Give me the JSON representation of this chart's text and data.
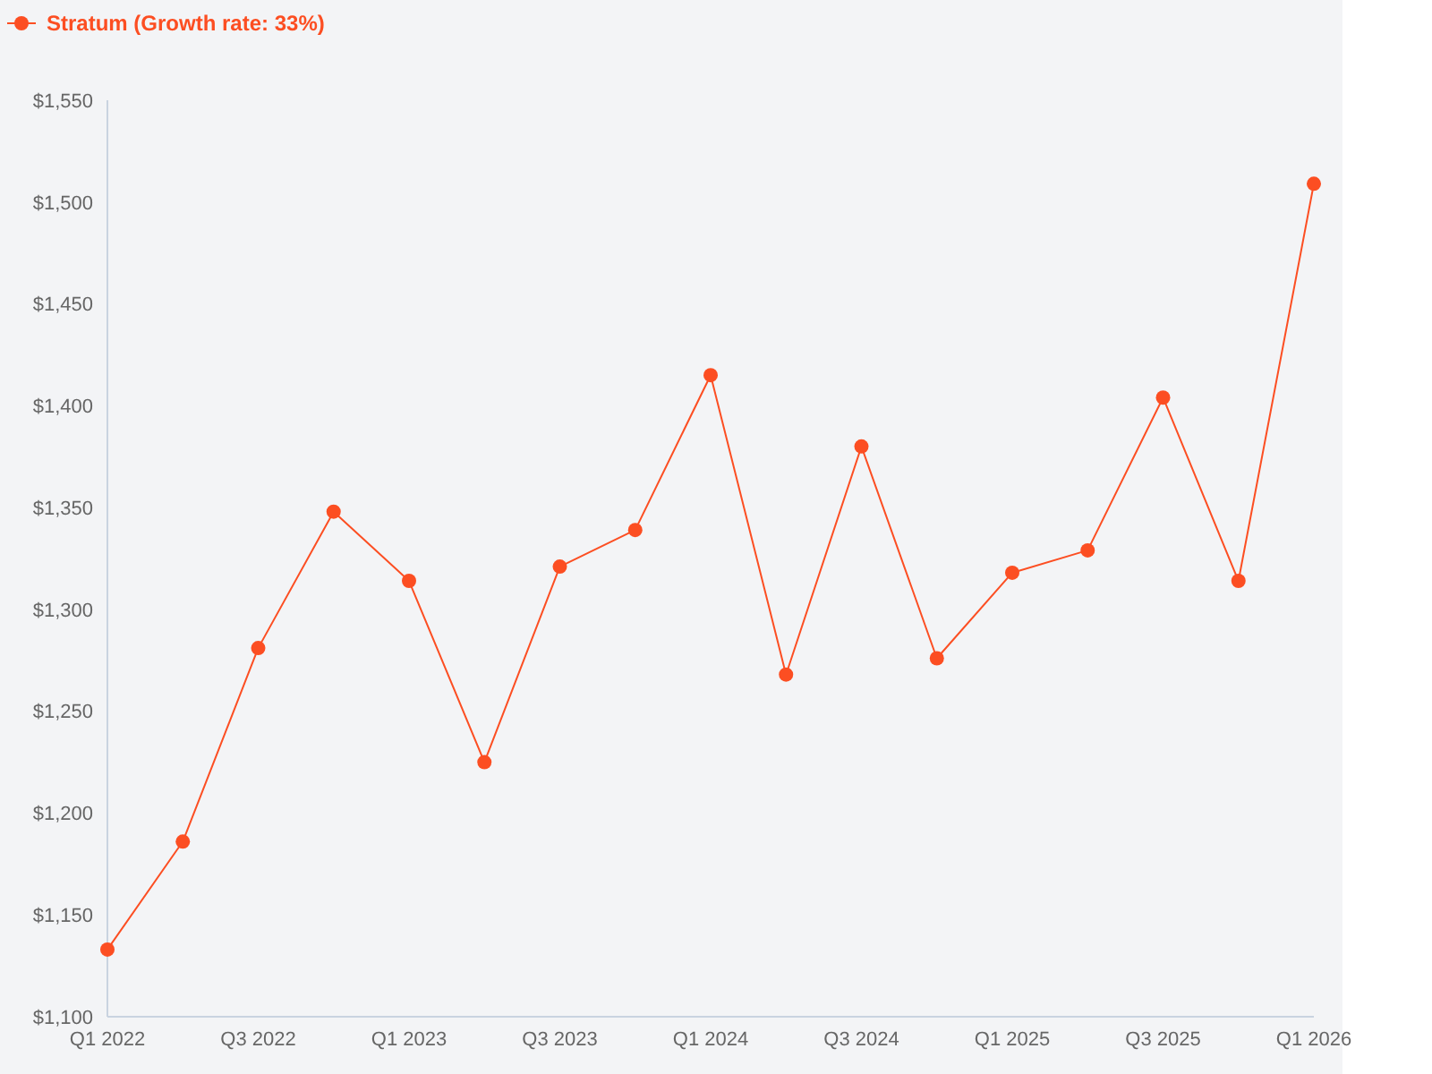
{
  "chart_data": {
    "type": "line",
    "categories": [
      "Q1 2022",
      null,
      "Q3 2022",
      null,
      "Q1 2023",
      null,
      "Q3 2023",
      null,
      "Q1 2024",
      null,
      "Q3 2024",
      null,
      "Q1 2025",
      null,
      "Q3 2025",
      null,
      "Q1 2026"
    ],
    "series": [
      {
        "name": "Stratum (Growth rate: 33%)",
        "color": "#fc4e22",
        "values": [
          1133,
          1186,
          1281,
          1348,
          1314,
          1225,
          1321,
          1339,
          1415,
          1268,
          1380,
          1276,
          1318,
          1329,
          1404,
          1314,
          1509
        ]
      }
    ],
    "ylim": [
      1100,
      1550
    ],
    "yticks": [
      {
        "value": 1100,
        "label": "$1,100"
      },
      {
        "value": 1150,
        "label": "$1,150"
      },
      {
        "value": 1200,
        "label": "$1,200"
      },
      {
        "value": 1250,
        "label": "$1,250"
      },
      {
        "value": 1300,
        "label": "$1,300"
      },
      {
        "value": 1350,
        "label": "$1,350"
      },
      {
        "value": 1400,
        "label": "$1,400"
      },
      {
        "value": 1450,
        "label": "$1,450"
      },
      {
        "value": 1500,
        "label": "$1,500"
      },
      {
        "value": 1550,
        "label": "$1,550"
      }
    ],
    "grid": false,
    "legend": "top left",
    "marker": "circle",
    "line_style": "solid"
  }
}
